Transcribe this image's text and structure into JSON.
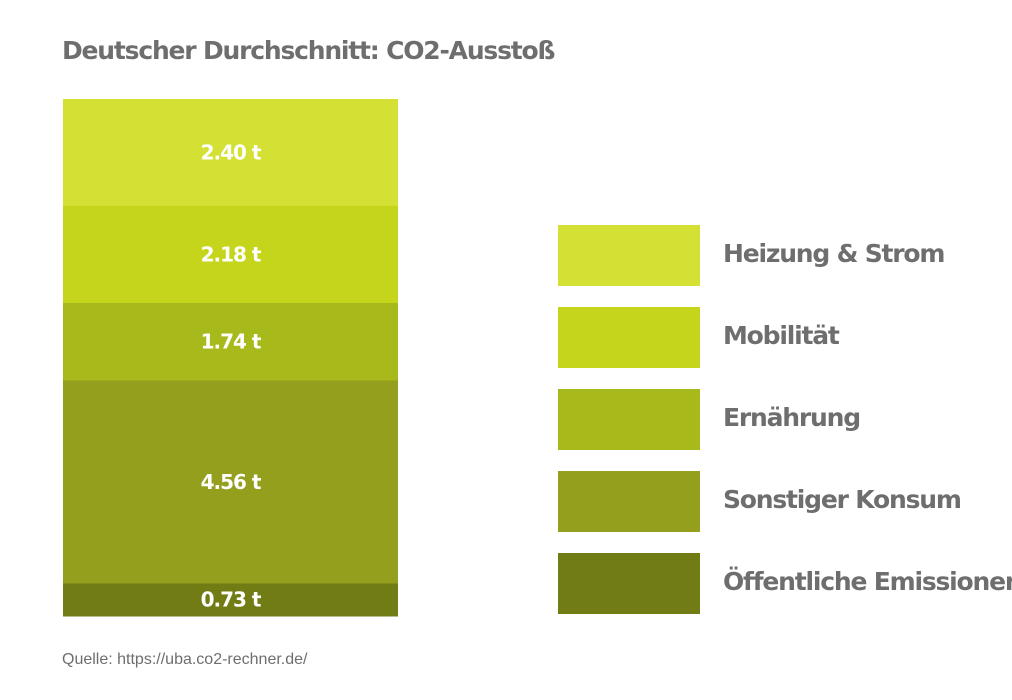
{
  "title": "Deutscher Durchschnitt: CO2-Ausstoß",
  "source": "Quelle: https://uba.co2-rechner.de/",
  "chart_data": {
    "type": "bar",
    "stacked": true,
    "unit": "t",
    "series": [
      {
        "name": "Heizung & Strom",
        "value": 2.4,
        "label": "2.40 t",
        "color": "#d4e134"
      },
      {
        "name": "Mobilität",
        "value": 2.18,
        "label": "2.18 t",
        "color": "#c5d51c"
      },
      {
        "name": "Ernährung",
        "value": 1.74,
        "label": "1.74 t",
        "color": "#a8b91b"
      },
      {
        "name": "Sonstiger Konsum",
        "value": 4.56,
        "label": "4.56 t",
        "color": "#939f1d"
      },
      {
        "name": "Öffentliche Emissionen",
        "value": 0.73,
        "label": "0.73 t",
        "color": "#727c14"
      }
    ],
    "legend_position": "right"
  }
}
